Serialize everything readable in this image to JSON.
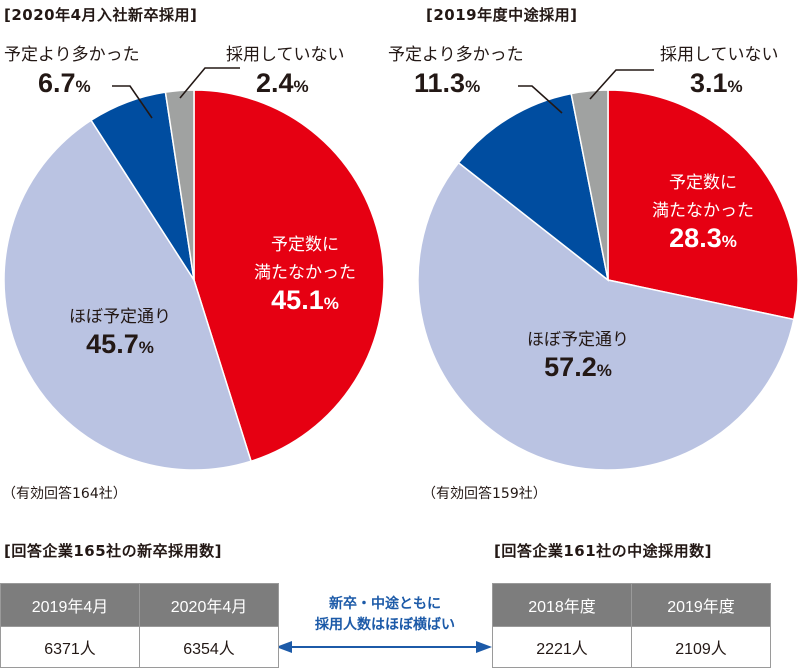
{
  "chart_data": [
    {
      "type": "pie",
      "title": "[2020年4月入社新卒採用]",
      "note": "（有効回答164社）",
      "slices": [
        {
          "label_lines": [
            "予定数に",
            "満たなかった"
          ],
          "value": 45.1,
          "color": "#e60012",
          "text_color": "#ffffff"
        },
        {
          "label_lines": [
            "ほぼ予定通り"
          ],
          "value": 45.7,
          "color": "#bac3e2",
          "text_color": "#231815"
        },
        {
          "label_lines": [
            "予定より多かった"
          ],
          "value": 6.7,
          "color": "#004da0",
          "text_color": "#231815"
        },
        {
          "label_lines": [
            "採用していない"
          ],
          "value": 2.4,
          "color": "#a0a2a1",
          "text_color": "#231815"
        }
      ],
      "unit": "%"
    },
    {
      "type": "pie",
      "title": "[2019年度中途採用]",
      "note": "（有効回答159社）",
      "slices": [
        {
          "label_lines": [
            "予定数に",
            "満たなかった"
          ],
          "value": 28.3,
          "color": "#e60012",
          "text_color": "#ffffff"
        },
        {
          "label_lines": [
            "ほぼ予定通り"
          ],
          "value": 57.2,
          "color": "#bac3e2",
          "text_color": "#231815"
        },
        {
          "label_lines": [
            "予定より多かった"
          ],
          "value": 11.3,
          "color": "#004da0",
          "text_color": "#231815"
        },
        {
          "label_lines": [
            "採用していない"
          ],
          "value": 3.1,
          "color": "#a0a2a1",
          "text_color": "#231815"
        }
      ],
      "unit": "%"
    }
  ],
  "tables": {
    "newgrad": {
      "title": "[回答企業165社の新卒採用数]",
      "headers": [
        "2019年4月",
        "2020年4月"
      ],
      "values": [
        "6371人",
        "6354人"
      ]
    },
    "midcareer": {
      "title": "[回答企業161社の中途採用数]",
      "headers": [
        "2018年度",
        "2019年度"
      ],
      "values": [
        "2221人",
        "2109人"
      ]
    }
  },
  "comparison_note": {
    "lines": [
      "新卒・中途ともに",
      "採用人数はほぼ横ばい"
    ],
    "color": "#1c5aa8"
  }
}
